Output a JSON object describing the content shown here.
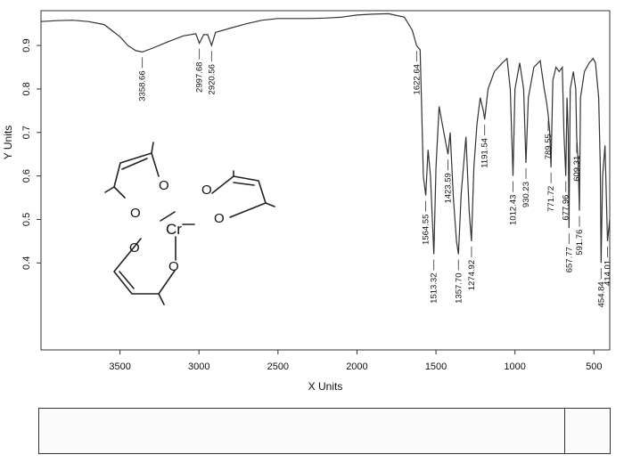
{
  "chart_data": {
    "type": "line",
    "title": "",
    "xlabel": "X Units",
    "ylabel": "Y Units",
    "xlim": [
      4000,
      400
    ],
    "ylim": [
      0.2,
      0.98
    ],
    "x_reversed": true,
    "x_ticks": [
      3500,
      3000,
      2500,
      2000,
      1500,
      1000,
      500
    ],
    "y_ticks": [
      0.4,
      0.5,
      0.6,
      0.7,
      0.8,
      0.9
    ],
    "series": [
      {
        "values_xy": [
          [
            4000,
            0.955
          ],
          [
            3900,
            0.957
          ],
          [
            3800,
            0.958
          ],
          [
            3700,
            0.955
          ],
          [
            3600,
            0.948
          ],
          [
            3500,
            0.92
          ],
          [
            3450,
            0.9
          ],
          [
            3400,
            0.888
          ],
          [
            3358.66,
            0.885
          ],
          [
            3300,
            0.893
          ],
          [
            3200,
            0.908
          ],
          [
            3100,
            0.922
          ],
          [
            3020,
            0.927
          ],
          [
            2997.68,
            0.905
          ],
          [
            2970,
            0.925
          ],
          [
            2945,
            0.925
          ],
          [
            2920.56,
            0.9
          ],
          [
            2895,
            0.93
          ],
          [
            2800,
            0.94
          ],
          [
            2700,
            0.95
          ],
          [
            2600,
            0.958
          ],
          [
            2500,
            0.962
          ],
          [
            2400,
            0.962
          ],
          [
            2300,
            0.962
          ],
          [
            2200,
            0.963
          ],
          [
            2100,
            0.965
          ],
          [
            2000,
            0.97
          ],
          [
            1900,
            0.972
          ],
          [
            1800,
            0.973
          ],
          [
            1700,
            0.965
          ],
          [
            1650,
            0.935
          ],
          [
            1622.64,
            0.9
          ],
          [
            1600,
            0.89
          ],
          [
            1590,
            0.75
          ],
          [
            1580,
            0.6
          ],
          [
            1564.55,
            0.555
          ],
          [
            1550,
            0.66
          ],
          [
            1535,
            0.6
          ],
          [
            1513.32,
            0.42
          ],
          [
            1500,
            0.62
          ],
          [
            1480,
            0.76
          ],
          [
            1460,
            0.72
          ],
          [
            1440,
            0.68
          ],
          [
            1423.59,
            0.65
          ],
          [
            1410,
            0.7
          ],
          [
            1390,
            0.55
          ],
          [
            1370,
            0.45
          ],
          [
            1357.7,
            0.42
          ],
          [
            1340,
            0.56
          ],
          [
            1310,
            0.69
          ],
          [
            1290,
            0.52
          ],
          [
            1274.92,
            0.45
          ],
          [
            1260,
            0.62
          ],
          [
            1240,
            0.72
          ],
          [
            1220,
            0.78
          ],
          [
            1200,
            0.75
          ],
          [
            1191.54,
            0.73
          ],
          [
            1170,
            0.8
          ],
          [
            1130,
            0.84
          ],
          [
            1080,
            0.86
          ],
          [
            1050,
            0.87
          ],
          [
            1030,
            0.8
          ],
          [
            1012.43,
            0.6
          ],
          [
            1000,
            0.8
          ],
          [
            970,
            0.86
          ],
          [
            945,
            0.8
          ],
          [
            930.23,
            0.63
          ],
          [
            915,
            0.78
          ],
          [
            880,
            0.85
          ],
          [
            840,
            0.865
          ],
          [
            815,
            0.8
          ],
          [
            800,
            0.77
          ],
          [
            789.55,
            0.74
          ],
          [
            780,
            0.7
          ],
          [
            771.72,
            0.62
          ],
          [
            760,
            0.82
          ],
          [
            740,
            0.85
          ],
          [
            720,
            0.84
          ],
          [
            700,
            0.85
          ],
          [
            690,
            0.7
          ],
          [
            677.96,
            0.6
          ],
          [
            670,
            0.78
          ],
          [
            663,
            0.7
          ],
          [
            657.77,
            0.48
          ],
          [
            650,
            0.8
          ],
          [
            630,
            0.84
          ],
          [
            615,
            0.8
          ],
          [
            609.31,
            0.69
          ],
          [
            600,
            0.63
          ],
          [
            591.76,
            0.52
          ],
          [
            585,
            0.78
          ],
          [
            560,
            0.84
          ],
          [
            530,
            0.86
          ],
          [
            505,
            0.87
          ],
          [
            490,
            0.86
          ],
          [
            470,
            0.78
          ],
          [
            460,
            0.62
          ],
          [
            454.84,
            0.4
          ],
          [
            445,
            0.6
          ],
          [
            430,
            0.67
          ],
          [
            414.01,
            0.45
          ],
          [
            400,
            0.5
          ]
        ]
      }
    ],
    "peak_labels": [
      {
        "x": 3358.66,
        "text": "3358.66"
      },
      {
        "x": 2997.68,
        "text": "2997.68"
      },
      {
        "x": 2920.56,
        "text": "2920.56"
      },
      {
        "x": 1622.64,
        "text": "1622.64"
      },
      {
        "x": 1564.55,
        "text": "1564.55"
      },
      {
        "x": 1513.32,
        "text": "1513.32"
      },
      {
        "x": 1423.59,
        "text": "1423.59"
      },
      {
        "x": 1357.7,
        "text": "1357.70"
      },
      {
        "x": 1274.92,
        "text": "1274.92"
      },
      {
        "x": 1191.54,
        "text": "1191.54"
      },
      {
        "x": 1012.43,
        "text": "1012.43"
      },
      {
        "x": 930.23,
        "text": "930.23"
      },
      {
        "x": 789.55,
        "text": "789.55"
      },
      {
        "x": 771.72,
        "text": "771.72"
      },
      {
        "x": 677.96,
        "text": "677.96"
      },
      {
        "x": 657.77,
        "text": "657.77"
      },
      {
        "x": 609.31,
        "text": "609.31"
      },
      {
        "x": 591.76,
        "text": "591.76"
      },
      {
        "x": 454.84,
        "text": "454.84"
      },
      {
        "x": 414.01,
        "text": "414.01"
      }
    ],
    "grid": false,
    "structure_labels": {
      "metal": "Cr",
      "oxygen": "O"
    }
  }
}
